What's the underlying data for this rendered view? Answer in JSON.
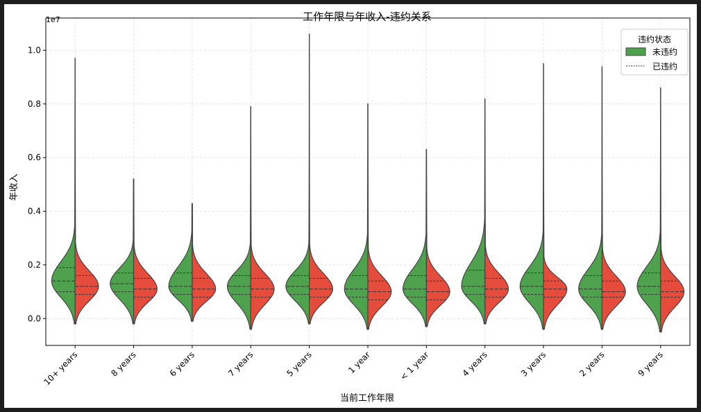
{
  "chart_data": {
    "type": "violin",
    "title": "工作年限与年收入-违约关系",
    "xlabel": "当前工作年限",
    "ylabel": "年收入",
    "y_scale_note": "1e7",
    "ylim": [
      -0.1,
      1.12
    ],
    "yticks": [
      0.0,
      0.2,
      0.4,
      0.6,
      0.8,
      1.0
    ],
    "ytick_labels": [
      "0.0",
      "0.2",
      "0.4",
      "0.6",
      "0.8",
      "1.0"
    ],
    "grid": true,
    "legend": {
      "title": "违约状态",
      "position": "top-right",
      "entries": [
        "未违约",
        "已违约"
      ]
    },
    "categories": [
      "10+ years",
      "8 years",
      "6 years",
      "7 years",
      "5 years",
      "1 year",
      "< 1 year",
      "4 years",
      "3 years",
      "2 years",
      "9 years"
    ],
    "series": [
      {
        "name": "未违约",
        "color": "#4ea24e",
        "min": [
          -0.02,
          -0.02,
          -0.01,
          -0.04,
          -0.02,
          -0.04,
          -0.03,
          -0.02,
          -0.04,
          -0.04,
          -0.05
        ],
        "q1": [
          0.1,
          0.1,
          0.09,
          0.09,
          0.09,
          0.08,
          0.08,
          0.09,
          0.09,
          0.08,
          0.09
        ],
        "median": [
          0.14,
          0.13,
          0.12,
          0.12,
          0.12,
          0.11,
          0.11,
          0.12,
          0.12,
          0.11,
          0.12
        ],
        "q3": [
          0.19,
          0.17,
          0.17,
          0.16,
          0.16,
          0.16,
          0.16,
          0.18,
          0.17,
          0.16,
          0.17
        ],
        "max": [
          0.97,
          0.52,
          0.43,
          0.79,
          1.06,
          0.8,
          0.63,
          0.82,
          0.95,
          0.94,
          0.86
        ]
      },
      {
        "name": "已违约",
        "color": "#e64c3c",
        "min": [
          -0.02,
          -0.02,
          -0.01,
          -0.04,
          -0.02,
          -0.04,
          -0.03,
          -0.02,
          -0.04,
          -0.04,
          -0.05
        ],
        "q1": [
          0.09,
          0.08,
          0.08,
          0.08,
          0.08,
          0.07,
          0.07,
          0.08,
          0.08,
          0.08,
          0.08
        ],
        "median": [
          0.12,
          0.11,
          0.11,
          0.11,
          0.11,
          0.1,
          0.1,
          0.11,
          0.11,
          0.1,
          0.1
        ],
        "q3": [
          0.16,
          0.15,
          0.15,
          0.15,
          0.15,
          0.14,
          0.14,
          0.15,
          0.14,
          0.14,
          0.14
        ],
        "max": [
          0.97,
          0.52,
          0.43,
          0.79,
          1.06,
          0.8,
          0.63,
          0.82,
          0.95,
          0.94,
          0.86
        ]
      }
    ]
  }
}
